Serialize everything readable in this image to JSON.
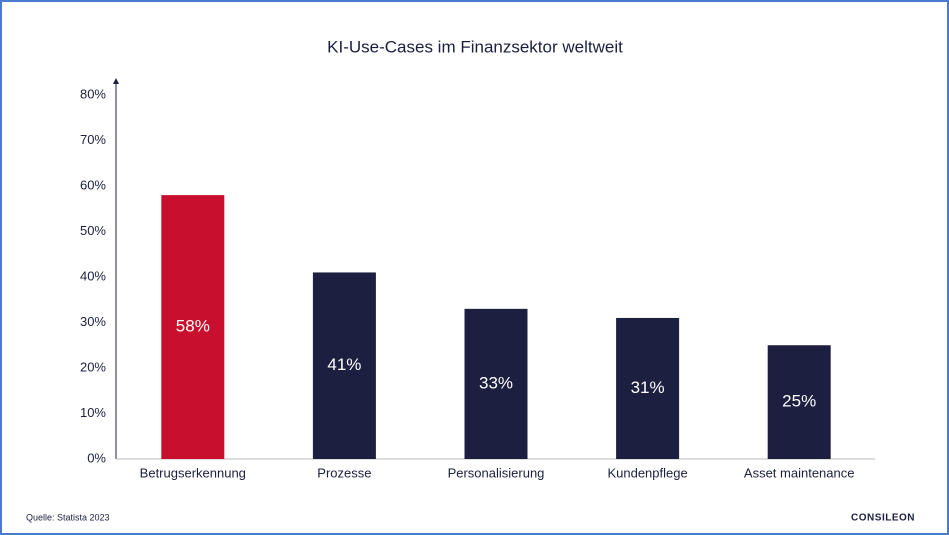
{
  "chart_data": {
    "type": "bar",
    "title": "KI-Use-Cases im Finanzsektor weltweit",
    "categories": [
      "Betrugserkennung",
      "Prozesse",
      "Personalisierung",
      "Kundenpflege",
      "Asset maintenance"
    ],
    "values": [
      58,
      41,
      33,
      31,
      25
    ],
    "value_labels": [
      "58%",
      "41%",
      "33%",
      "31%",
      "25%"
    ],
    "colors": [
      "#c8102e",
      "#1c1f40",
      "#1c1f40",
      "#1c1f40",
      "#1c1f40"
    ],
    "ylim": [
      0,
      80
    ],
    "yticks": [
      {
        "value": 0,
        "label": "0%"
      },
      {
        "value": 10,
        "label": "10%"
      },
      {
        "value": 20,
        "label": "20%"
      },
      {
        "value": 30,
        "label": "30%"
      },
      {
        "value": 40,
        "label": "40%"
      },
      {
        "value": 50,
        "label": "50%"
      },
      {
        "value": 60,
        "label": "60%"
      },
      {
        "value": 70,
        "label": "70%"
      },
      {
        "value": 80,
        "label": "80%"
      }
    ],
    "grid": false
  },
  "footer": {
    "source": "Quelle: Statista 2023",
    "logo": "CONSILEON"
  }
}
